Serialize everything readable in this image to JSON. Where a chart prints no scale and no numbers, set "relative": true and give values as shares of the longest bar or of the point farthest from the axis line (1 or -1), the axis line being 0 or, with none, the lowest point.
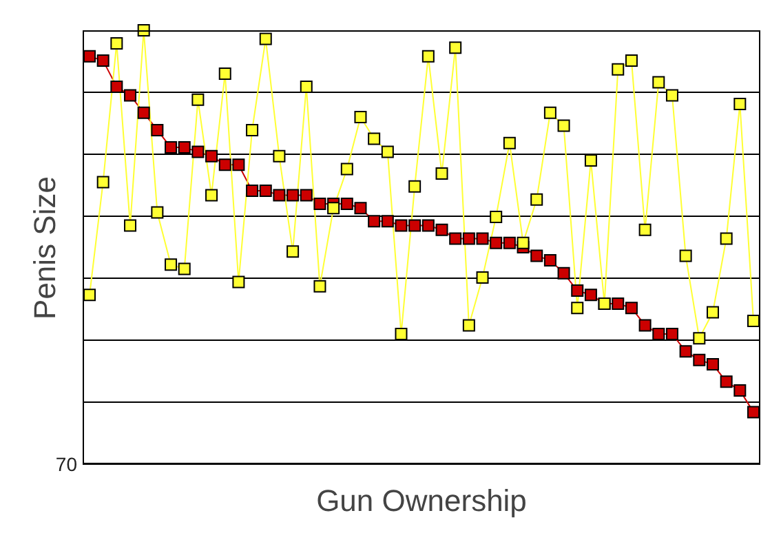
{
  "chart_data": {
    "type": "line",
    "relative": true,
    "xlabel": "Gun Ownership",
    "ylabel": "Penis Size",
    "annotations": [
      "70"
    ],
    "grid": "y",
    "marker": "square",
    "line_style": "solid",
    "categories": [
      null,
      null,
      null,
      null,
      null,
      null,
      null,
      null,
      null,
      null,
      null,
      null,
      null,
      null,
      null,
      null,
      null,
      null,
      null,
      null,
      null,
      null,
      null,
      null,
      null,
      null,
      null,
      null,
      null,
      null,
      null,
      null,
      null,
      null,
      null,
      null,
      null,
      null,
      null,
      null,
      null,
      null,
      null,
      null,
      null,
      null,
      null,
      null,
      null,
      null
    ],
    "series": [
      {
        "color": "#cc0000",
        "values": [
          0.94,
          0.93,
          0.87,
          0.85,
          0.81,
          0.77,
          0.73,
          0.73,
          0.72,
          0.71,
          0.69,
          0.69,
          0.63,
          0.63,
          0.62,
          0.62,
          0.62,
          0.6,
          0.6,
          0.6,
          0.59,
          0.56,
          0.56,
          0.55,
          0.55,
          0.55,
          0.54,
          0.52,
          0.52,
          0.52,
          0.51,
          0.51,
          0.5,
          0.48,
          0.47,
          0.44,
          0.4,
          0.39,
          0.37,
          0.37,
          0.36,
          0.32,
          0.3,
          0.3,
          0.26,
          0.24,
          0.23,
          0.19,
          0.17,
          0.12
        ]
      },
      {
        "color": "#ffff33",
        "values": [
          0.39,
          0.65,
          0.97,
          0.55,
          1,
          0.58,
          0.46,
          0.45,
          0.84,
          0.62,
          0.9,
          0.42,
          0.77,
          0.98,
          0.71,
          0.49,
          0.87,
          0.41,
          0.59,
          0.68,
          0.8,
          0.75,
          0.72,
          0.3,
          0.64,
          0.94,
          0.67,
          0.96,
          0.32,
          0.43,
          0.57,
          0.74,
          0.51,
          0.61,
          0.81,
          0.78,
          0.36,
          0.7,
          0.37,
          0.91,
          0.93,
          0.54,
          0.88,
          0.85,
          0.48,
          0.29,
          0.35,
          0.52,
          0.83,
          0.33
        ]
      }
    ]
  }
}
